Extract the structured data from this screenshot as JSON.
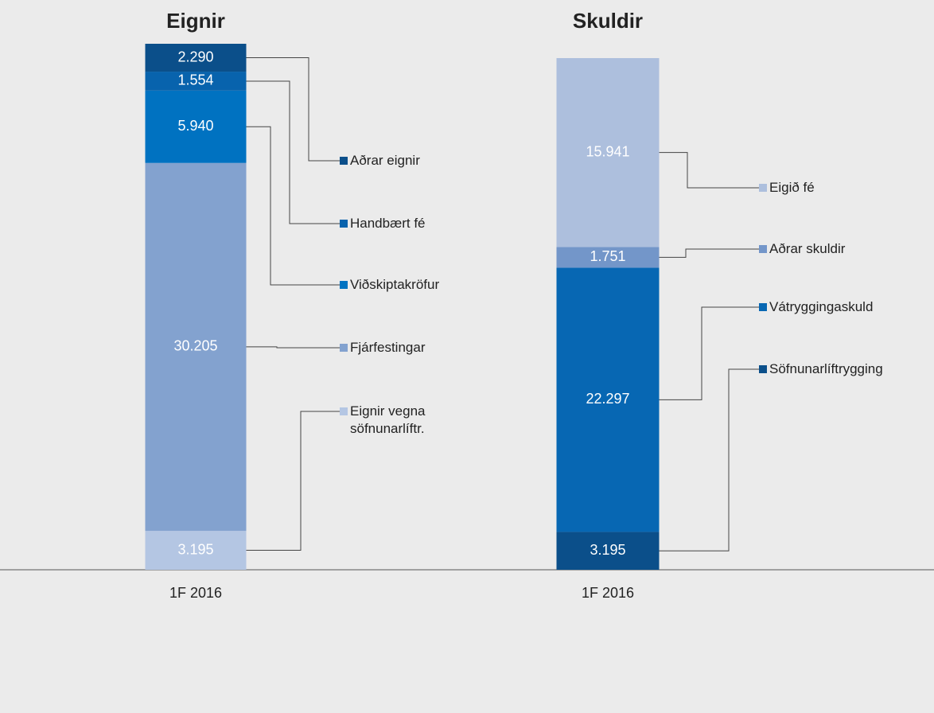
{
  "chart_data": [
    {
      "type": "stacked-bar",
      "title": "Eignir",
      "categories": [
        "1F 2016"
      ],
      "series": [
        {
          "name": "Eignir vegna söfnunarlíftr.",
          "color": "#b4c6e3",
          "values": [
            3195
          ],
          "value_labels": [
            "3.195"
          ]
        },
        {
          "name": "Fjárfestingar",
          "color": "#83a2cf",
          "values": [
            30205
          ],
          "value_labels": [
            "30.205"
          ]
        },
        {
          "name": "Viðskiptakröfur",
          "color": "#0072c1",
          "values": [
            5940
          ],
          "value_labels": [
            "5.940"
          ]
        },
        {
          "name": "Handbært fé",
          "color": "#0863ad",
          "values": [
            1554
          ],
          "value_labels": [
            "1.554"
          ]
        },
        {
          "name": "Aðrar eignir",
          "color": "#0b4f8a",
          "values": [
            2290
          ],
          "value_labels": [
            "2.290"
          ]
        }
      ]
    },
    {
      "type": "stacked-bar",
      "title": "Skuldir",
      "categories": [
        "1F 2016"
      ],
      "series": [
        {
          "name": "Söfnunarlíftrygging",
          "color": "#0b4f8a",
          "values": [
            3195
          ],
          "value_labels": [
            "3.195"
          ]
        },
        {
          "name": "Vátryggingaskuld",
          "color": "#0767b3",
          "values": [
            22297
          ],
          "value_labels": [
            "22.297"
          ]
        },
        {
          "name": "Aðrar skuldir",
          "color": "#7396c9",
          "values": [
            1751
          ],
          "value_labels": [
            "1.751"
          ]
        },
        {
          "name": "Eigið fé",
          "color": "#adbfdd",
          "values": [
            15941
          ],
          "value_labels": [
            "15.941"
          ]
        }
      ]
    }
  ]
}
